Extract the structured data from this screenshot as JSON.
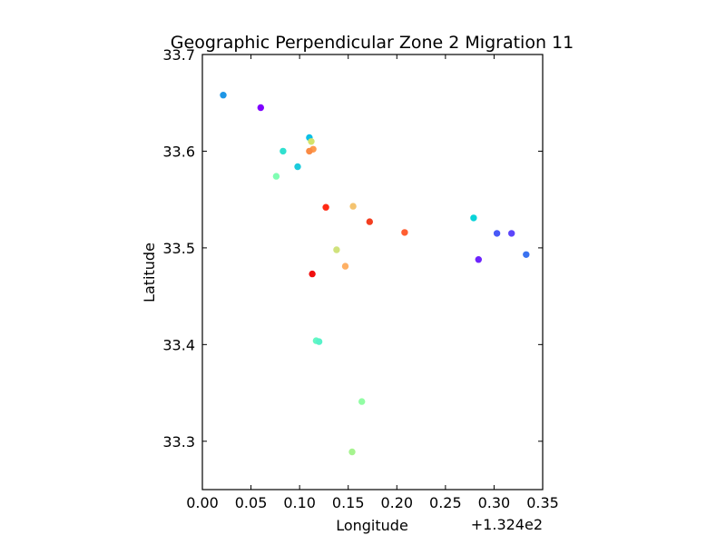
{
  "chart_data": {
    "type": "scatter",
    "title": "Geographic Perpendicular Zone 2 Migration 11",
    "xlabel": "Longitude",
    "ylabel": "Latitude",
    "x_offset_label": "+1.324e2",
    "x_offset": 132.4,
    "xlim": [
      0.0,
      0.35
    ],
    "ylim": [
      33.25,
      33.7
    ],
    "xticks": [
      "0.00",
      "0.05",
      "0.10",
      "0.15",
      "0.20",
      "0.25",
      "0.30",
      "0.35"
    ],
    "yticks": [
      "33.3",
      "33.4",
      "33.5",
      "33.6",
      "33.7"
    ],
    "grid": false,
    "legend": "none",
    "points": [
      {
        "lon": 132.4215,
        "lat": 33.658,
        "color": "#1e96e6"
      },
      {
        "lon": 132.46,
        "lat": 33.645,
        "color": "#7f00ff"
      },
      {
        "lon": 132.51,
        "lat": 33.614,
        "color": "#0cbfe6"
      },
      {
        "lon": 132.512,
        "lat": 33.61,
        "color": "#d4e36a"
      },
      {
        "lon": 132.514,
        "lat": 33.602,
        "color": "#fe9a4d"
      },
      {
        "lon": 132.51,
        "lat": 33.6,
        "color": "#fa8a43"
      },
      {
        "lon": 132.483,
        "lat": 33.6,
        "color": "#30e0cf"
      },
      {
        "lon": 132.498,
        "lat": 33.584,
        "color": "#1ccbdc"
      },
      {
        "lon": 132.476,
        "lat": 33.574,
        "color": "#80feb3"
      },
      {
        "lon": 132.555,
        "lat": 33.543,
        "color": "#f4c36f"
      },
      {
        "lon": 132.527,
        "lat": 33.542,
        "color": "#ff2a14"
      },
      {
        "lon": 132.572,
        "lat": 33.527,
        "color": "#f33e20"
      },
      {
        "lon": 132.608,
        "lat": 33.516,
        "color": "#ff5e31"
      },
      {
        "lon": 132.679,
        "lat": 33.531,
        "color": "#08d3d8"
      },
      {
        "lon": 132.703,
        "lat": 33.515,
        "color": "#4859f7"
      },
      {
        "lon": 132.718,
        "lat": 33.515,
        "color": "#5c45fb"
      },
      {
        "lon": 132.733,
        "lat": 33.493,
        "color": "#3a72f0"
      },
      {
        "lon": 132.684,
        "lat": 33.488,
        "color": "#6d24fd"
      },
      {
        "lon": 132.538,
        "lat": 33.498,
        "color": "#d0e27c"
      },
      {
        "lon": 132.547,
        "lat": 33.481,
        "color": "#feb064"
      },
      {
        "lon": 132.513,
        "lat": 33.473,
        "color": "#f00e0e"
      },
      {
        "lon": 132.517,
        "lat": 33.404,
        "color": "#64f8c3"
      },
      {
        "lon": 132.52,
        "lat": 33.403,
        "color": "#58f2c9"
      },
      {
        "lon": 132.564,
        "lat": 33.341,
        "color": "#92fda4"
      },
      {
        "lon": 132.554,
        "lat": 33.289,
        "color": "#a6f48f"
      }
    ]
  }
}
